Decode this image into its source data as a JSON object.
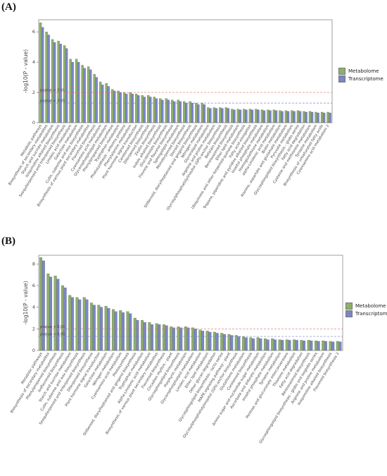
{
  "figure": {
    "panel_a_label": "(A)",
    "panel_b_label": "(B)",
    "colors": {
      "metabolome": "#8db06a",
      "transcriptome": "#7b86c6",
      "threshold_001": "#e46a6a",
      "threshold_005": "#7a86c8"
    }
  },
  "chart_data": [
    {
      "type": "bar",
      "panel": "A",
      "ylabel": "-log10(P - value)",
      "ylim": [
        0,
        6.8
      ],
      "yticks": [
        0,
        2,
        4,
        6
      ],
      "legend": {
        "placement": "right",
        "entries": [
          "Metabolome",
          "Transcriptome"
        ]
      },
      "thresholds": [
        {
          "label": "pvalue < 0.01",
          "value": 2.0
        },
        {
          "label": "pvalue < 0.05",
          "value": 1.3
        }
      ],
      "categories": [
        "Metabolic pathways",
        "Biosynthesis of secondary metabolites",
        "Starch and sucrose metabolism",
        "Isoquinoline alkaloid biosynthesis",
        "Sesquiterpenoid and triterpenoid biosynthesis",
        "Linoleic acid metabolism",
        "Galactose metabolism",
        "Cutin, suberine and wax biosynthesis",
        "Biosynthesis of various plant secondary metabolites",
        "Flavonoid biosynthesis",
        "Cyanoamino acid metabolism",
        "Glycerophospholipid metabolism",
        "Phenylpropanoid biosynthesis",
        "Tryptophan metabolism",
        "Photosynthesis - antenna proteins",
        "Phenylalanine metabolism",
        "Plant hormone signal transduction",
        "Carotenoid biosynthesis",
        "Diterpenoid biosynthesis",
        "Zeatin biosynthesis",
        "Indole alkaloid biosynthesis",
        "Glucosinolate biosynthesis",
        "Flavone and flavonol biosynthesis",
        "Sphingolipid metabolism",
        "Monoterpenoid biosynthesis",
        "Steroid biosynthesis",
        "Stilbenoid, diarylheptanoid and gingerol biosynthesis",
        "Nitrogen metabolism",
        "Glycerolipid metabolism",
        "Arginine and proline metabolism",
        "Glycosylphosphatidylinositol (GPI)-anchor biosynthesis",
        "Betalain biosynthesis",
        "Benzoxazinoid biosynthesis",
        "Ether lipid metabolism",
        "Ubiquinone and other terpenoid-quinone biosynthesis",
        "Fatty acid elongation",
        "Tropane, piperidine and pyridine alkaloid biosynthesis",
        "Inositol phosphate metabolism",
        "Homoglutathione metabolism",
        "alpha-Linolenic acid metabolism",
        "Biotin metabolism",
        "Alanine, aspartate and glutamate metabolism",
        "Pyruvate metabolism",
        "Glycosphingolipid biosynthesis - globo series",
        "Fatty acid degradation",
        "Cysteine and methionine metabolism",
        "Tyrosine metabolism",
        "Biosynthesis of unsaturated fatty acids",
        "Cyanoamino acid metabolism 2"
      ],
      "series": [
        {
          "name": "Metabolome",
          "values": [
            6.6,
            6.0,
            5.5,
            5.4,
            5.1,
            4.2,
            4.2,
            3.8,
            3.7,
            3.2,
            2.7,
            2.6,
            2.2,
            2.1,
            2.0,
            2.0,
            1.9,
            1.8,
            1.8,
            1.7,
            1.6,
            1.6,
            1.5,
            1.5,
            1.4,
            1.4,
            1.3,
            1.3,
            1.0,
            1.0,
            1.0,
            1.0,
            0.9,
            0.9,
            0.9,
            0.9,
            0.9,
            0.85,
            0.85,
            0.85,
            0.8,
            0.8,
            0.8,
            0.8,
            0.75,
            0.75,
            0.7,
            0.7,
            0.7
          ]
        },
        {
          "name": "Transcriptome",
          "values": [
            6.3,
            5.8,
            5.3,
            5.2,
            4.9,
            4.0,
            4.0,
            3.6,
            3.5,
            3.0,
            2.5,
            2.4,
            2.1,
            2.0,
            1.9,
            1.9,
            1.8,
            1.7,
            1.7,
            1.6,
            1.5,
            1.5,
            1.4,
            1.4,
            1.3,
            1.3,
            1.2,
            1.2,
            0.95,
            0.95,
            0.95,
            0.95,
            0.85,
            0.85,
            0.85,
            0.85,
            0.85,
            0.8,
            0.8,
            0.8,
            0.75,
            0.75,
            0.75,
            0.75,
            0.7,
            0.7,
            0.65,
            0.65,
            0.65
          ]
        }
      ]
    },
    {
      "type": "bar",
      "panel": "B",
      "ylabel": "-log10(P - value)",
      "ylim": [
        0,
        8.8
      ],
      "yticks": [
        0,
        2,
        4,
        6,
        8
      ],
      "legend": {
        "placement": "right",
        "entries": [
          "Metabolome",
          "Transcriptome"
        ]
      },
      "thresholds": [
        {
          "label": "pvalue < 0.01",
          "value": 2.0
        },
        {
          "label": "pvalue < 0.05",
          "value": 1.3
        }
      ],
      "categories": [
        "Metabolic pathways",
        "Biosynthesis of secondary metabolites",
        "Phenylpropanoid biosynthesis",
        "Isoflavonoid biosynthesis",
        "Starch and sucrose metabolism",
        "Cutin, suberine and wax biosynthesis",
        "Sesquiterpenoid and triterpenoid biosynthesis",
        "Diterpenoid biosynthesis",
        "Plant hormone signal transduction",
        "Galactose metabolism",
        "Nitrogen metabolism",
        "Cyanoamino acid metabolism",
        "Photosynthesis",
        "Stilbenoid, diarylheptanoid and gingerol biosynthesis",
        "Tryptophan metabolism",
        "Alpha-Linolenic acid metabolism",
        "Biosynthesis of various plant secondary metabolites",
        "Flavonoid biosynthesis",
        "Circadian rhythm - plant",
        "Glycosphingolipid biosynthesis",
        "Porphyrin metabolism",
        "Glycerophospholipid metabolism",
        "Linoleic acid metabolism",
        "Ether lipid metabolism",
        "Other glycan degradation",
        "Glycosphingolipid biosynthesis - lacto series",
        "MAPK signaling pathway - plant",
        "Glycosylphosphatidylinositol (GPI)-anchor biosynthesis",
        "Glutathione metabolism",
        "Carotenoid biosynthesis",
        "Amino sugar and nucleotide sugar metabolism",
        "Ascorbate and aldarate metabolism",
        "Inositol phosphate metabolism",
        "Tyrosine metabolism",
        "Pentose and glucuronate interconversions",
        "Thiamine metabolism",
        "Fatty acid degradation",
        "Benzoxazinoid biosynthesis",
        "Glycosphingolipid biosynthesis - globo and isoglobo series",
        "Arginine and proline metabolism",
        "Isoquinoline alkaloid biosynthesis",
        "Flavonoid biosynthesis 2"
      ],
      "series": [
        {
          "name": "Metabolome",
          "values": [
            8.6,
            7.1,
            6.9,
            6.0,
            5.1,
            4.9,
            4.9,
            4.4,
            4.2,
            4.1,
            3.8,
            3.7,
            3.6,
            3.0,
            2.8,
            2.6,
            2.5,
            2.4,
            2.2,
            2.2,
            2.2,
            2.1,
            1.9,
            1.8,
            1.7,
            1.6,
            1.5,
            1.4,
            1.3,
            1.2,
            1.2,
            1.1,
            1.1,
            1.0,
            1.0,
            1.0,
            0.95,
            0.95,
            0.9,
            0.9,
            0.85,
            0.85
          ]
        },
        {
          "name": "Transcriptome",
          "values": [
            8.3,
            6.8,
            6.6,
            5.8,
            4.9,
            4.7,
            4.7,
            4.2,
            4.0,
            3.9,
            3.6,
            3.5,
            3.4,
            2.8,
            2.6,
            2.4,
            2.4,
            2.3,
            2.1,
            2.1,
            2.1,
            2.0,
            1.8,
            1.7,
            1.6,
            1.5,
            1.4,
            1.3,
            1.2,
            1.1,
            1.1,
            1.0,
            1.0,
            0.95,
            0.95,
            0.95,
            0.9,
            0.9,
            0.85,
            0.85,
            0.8,
            0.8
          ]
        }
      ]
    }
  ]
}
